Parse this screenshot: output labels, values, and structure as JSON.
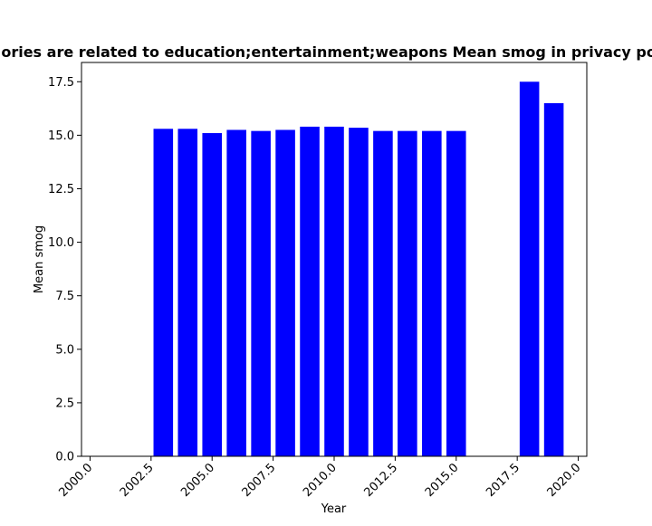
{
  "chart_data": {
    "type": "bar",
    "title": "Categories are related to education;entertainment;weapons Mean smog in privacy policies",
    "xlabel": "Year",
    "ylabel": "Mean smog",
    "x": [
      2003,
      2004,
      2005,
      2006,
      2007,
      2008,
      2009,
      2010,
      2011,
      2012,
      2013,
      2014,
      2015,
      2018,
      2019
    ],
    "values": [
      15.3,
      15.3,
      15.1,
      15.25,
      15.2,
      15.25,
      15.4,
      15.4,
      15.35,
      15.2,
      15.2,
      15.2,
      15.2,
      17.5,
      16.5
    ],
    "xlim": [
      1999.65,
      2020.35
    ],
    "ylim": [
      0,
      18.4
    ],
    "x_ticks": [
      2000,
      2002.5,
      2005,
      2007.5,
      2010,
      2012.5,
      2015,
      2017.5,
      2020
    ],
    "x_tick_labels": [
      "2000.0",
      "2002.5",
      "2005.0",
      "2007.5",
      "2010.0",
      "2012.5",
      "2015.0",
      "2017.5",
      "2020.0"
    ],
    "y_ticks": [
      0,
      2.5,
      5,
      7.5,
      10,
      12.5,
      15,
      17.5
    ],
    "y_tick_labels": [
      "0.0",
      "2.5",
      "5.0",
      "7.5",
      "10.0",
      "12.5",
      "15.0",
      "17.5"
    ],
    "bar_width": 0.8,
    "grid": false,
    "legend": "none",
    "colors": {
      "bar": "#0000ff",
      "axis": "#000000",
      "background": "#ffffff"
    }
  }
}
